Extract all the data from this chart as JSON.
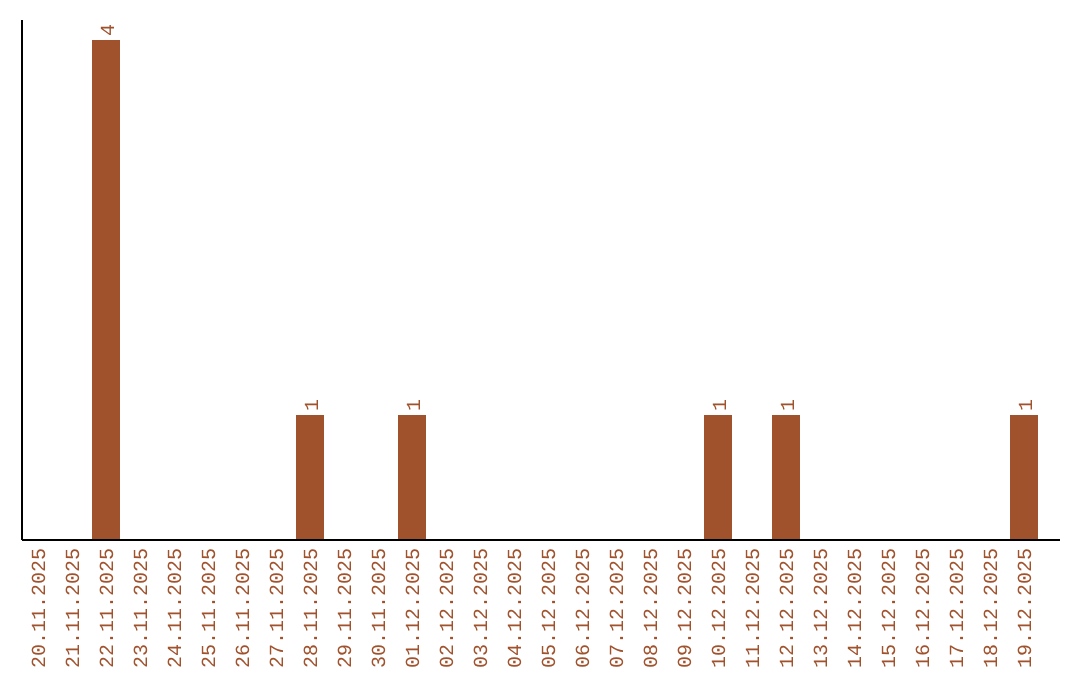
{
  "chart_data": {
    "type": "bar",
    "categories": [
      "20.11.2025",
      "21.11.2025",
      "22.11.2025",
      "23.11.2025",
      "24.11.2025",
      "25.11.2025",
      "26.11.2025",
      "27.11.2025",
      "28.11.2025",
      "29.11.2025",
      "30.11.2025",
      "01.12.2025",
      "02.12.2025",
      "03.12.2025",
      "04.12.2025",
      "05.12.2025",
      "06.12.2025",
      "07.12.2025",
      "08.12.2025",
      "09.12.2025",
      "10.12.2025",
      "11.12.2025",
      "12.12.2025",
      "13.12.2025",
      "14.12.2025",
      "15.12.2025",
      "16.12.2025",
      "17.12.2025",
      "18.12.2025",
      "19.12.2025"
    ],
    "values": [
      0,
      0,
      4,
      0,
      0,
      0,
      0,
      0,
      1,
      0,
      0,
      1,
      0,
      0,
      0,
      0,
      0,
      0,
      0,
      0,
      1,
      0,
      1,
      0,
      0,
      0,
      0,
      0,
      0,
      1
    ],
    "color": "#a0522d",
    "value_labels": [
      null,
      null,
      "4",
      null,
      null,
      null,
      null,
      null,
      "1",
      null,
      null,
      "1",
      null,
      null,
      null,
      null,
      null,
      null,
      null,
      null,
      "1",
      null,
      "1",
      null,
      null,
      null,
      null,
      null,
      null,
      "1"
    ]
  }
}
